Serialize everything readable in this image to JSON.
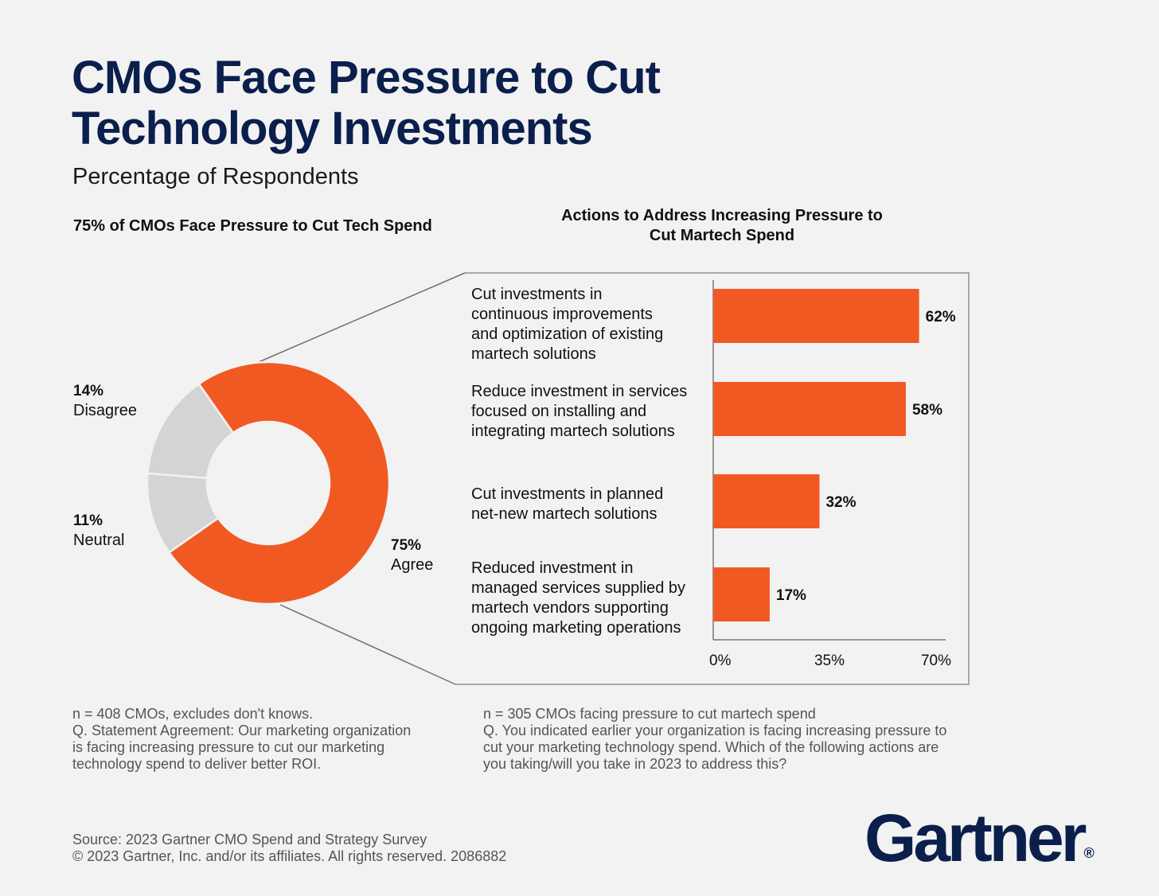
{
  "title_line1": "CMOs Face Pressure to Cut",
  "title_line2": "Technology Investments",
  "subtitle": "Percentage of Respondents",
  "left_heading": "75% of CMOs Face Pressure to Cut Tech Spend",
  "right_heading": "Actions to Address Increasing Pressure to Cut Martech Spend",
  "colors": {
    "agree": "#f05a22",
    "other": "#d4d4d4",
    "bar": "#f05a22",
    "title": "#0b1f4d"
  },
  "chart_data": [
    {
      "type": "pie",
      "title": "75% of CMOs Face Pressure to Cut Tech Spend",
      "slices": [
        {
          "pct_label": "75%",
          "name": "Agree",
          "value": 75
        },
        {
          "pct_label": "11%",
          "name": "Neutral",
          "value": 11
        },
        {
          "pct_label": "14%",
          "name": "Disagree",
          "value": 14
        }
      ]
    },
    {
      "type": "bar",
      "orientation": "horizontal",
      "title": "Actions to Address Increasing Pressure to Cut Martech Spend",
      "categories": [
        [
          "Cut investments in",
          "continuous improvements",
          "and optimization of existing",
          "martech solutions"
        ],
        [
          "Reduce investment in services",
          "focused on installing and",
          "integrating martech solutions"
        ],
        [
          "Cut investments in planned",
          "net-new martech solutions"
        ],
        [
          "Reduced investment in",
          "managed services supplied by",
          "martech vendors supporting",
          "ongoing marketing operations"
        ]
      ],
      "values": [
        62,
        58,
        32,
        17
      ],
      "value_labels": [
        "62%",
        "58%",
        "32%",
        "17%"
      ],
      "xlim": [
        0,
        70
      ],
      "xticks": [
        "0%",
        "35%",
        "70%"
      ],
      "xtick_values": [
        0,
        35,
        70
      ]
    }
  ],
  "notes": {
    "left": [
      "n = 408 CMOs, excludes don't knows.",
      "Q. Statement Agreement: Our marketing organization",
      "is facing increasing pressure to cut our marketing",
      "technology spend to deliver better ROI."
    ],
    "right": [
      "n = 305 CMOs facing pressure to cut martech spend",
      "Q. You indicated earlier your organization is facing increasing pressure to",
      "cut your marketing technology spend. Which of the following actions are",
      "you taking/will you take in 2023 to address this?"
    ]
  },
  "source": [
    "Source: 2023 Gartner CMO Spend and Strategy Survey",
    "© 2023 Gartner, Inc. and/or its affiliates. All rights reserved. 2086882"
  ],
  "logo": "Gartner",
  "logo_mark": "®"
}
